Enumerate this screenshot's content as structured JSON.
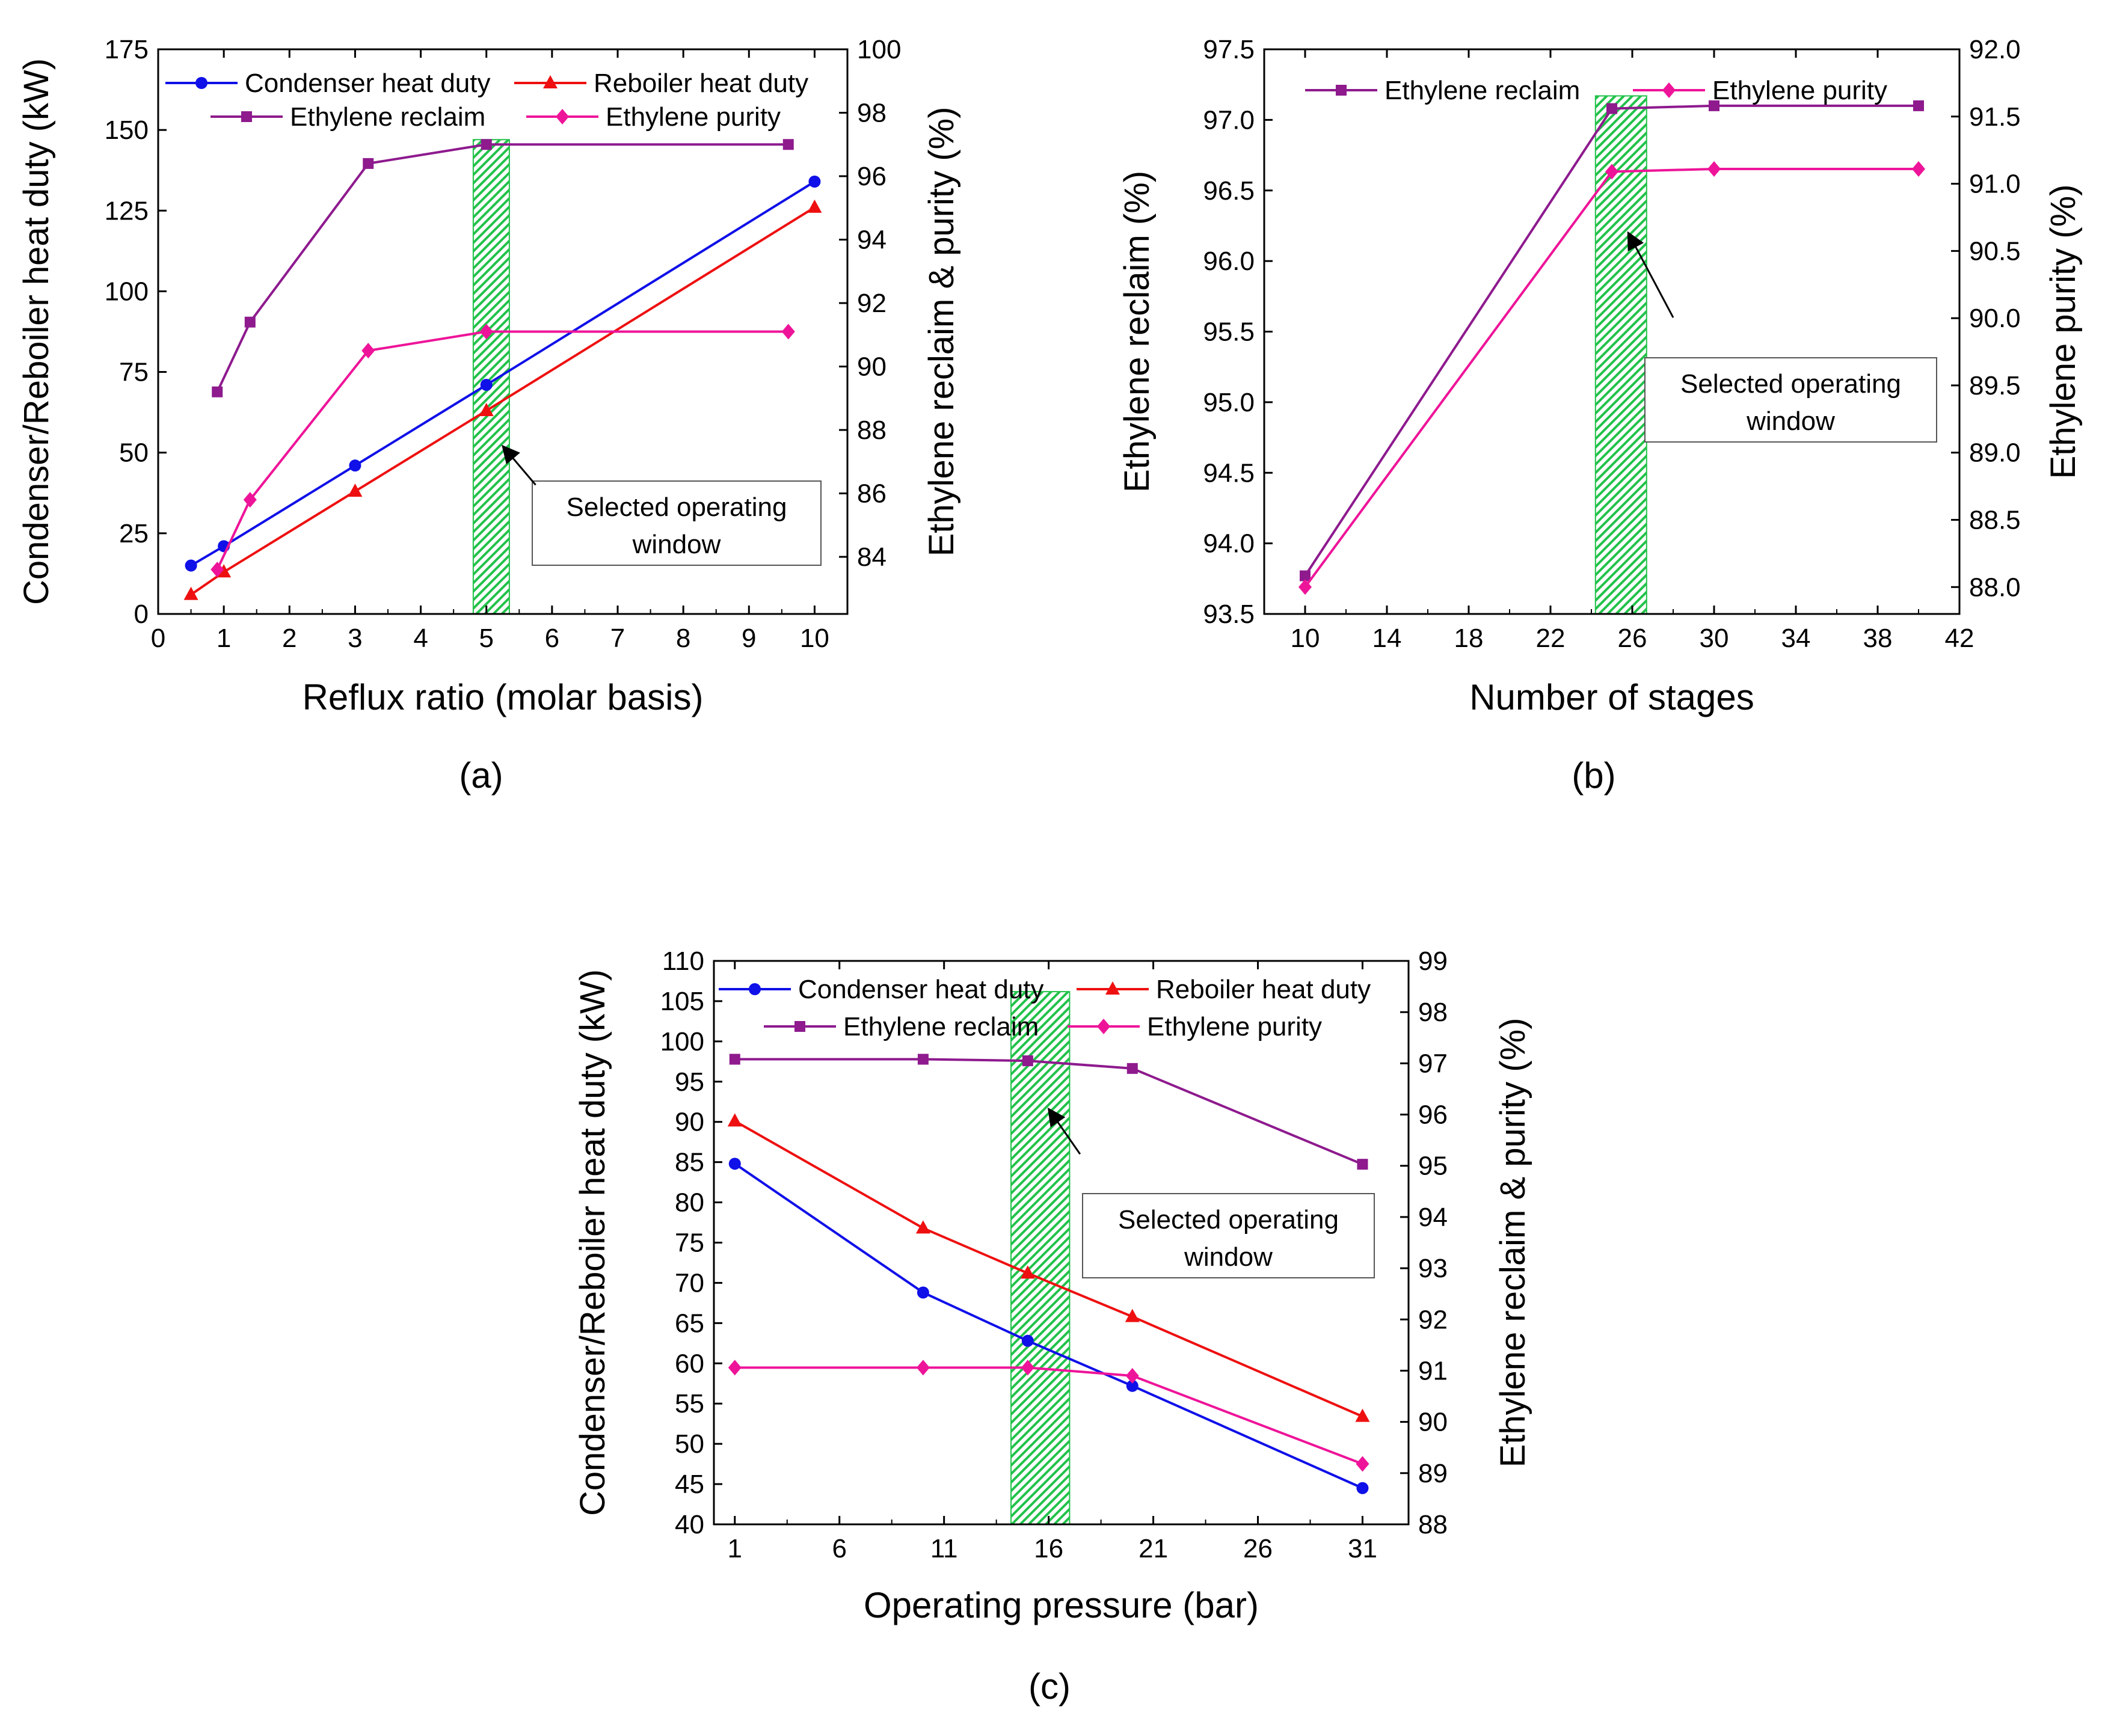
{
  "colors": {
    "condenser": "#1010e8",
    "reboiler": "#ee1010",
    "reclaim": "#8e1a8e",
    "purity": "#ee1499",
    "window": "#22c24a",
    "window_bg": "#ffffff"
  },
  "chart_data": [
    {
      "type": "line",
      "panel_label": "(a)",
      "xlabel": "Reflux ratio (molar basis)",
      "ylabel": "Condenser/Reboiler heat duty (kW)",
      "y2label": "Ethylene reclaim & purity (%)",
      "xlim": [
        0,
        10.5
      ],
      "ylim": [
        0,
        175
      ],
      "y2lim": [
        82.2,
        100
      ],
      "xticks": [
        0,
        1,
        2,
        3,
        4,
        5,
        6,
        7,
        8,
        9,
        10
      ],
      "yticks": [
        0,
        25,
        50,
        75,
        100,
        125,
        150,
        175
      ],
      "y2ticks": [
        84,
        86,
        88,
        90,
        92,
        94,
        96,
        98,
        100
      ],
      "x_tick_labels": [
        "0",
        "1",
        "2",
        "3",
        "4",
        "5",
        "6",
        "7",
        "8",
        "9",
        "10"
      ],
      "y_tick_labels": [
        "0",
        "25",
        "50",
        "75",
        "100",
        "125",
        "150",
        "175"
      ],
      "y2_tick_labels": [
        "84",
        "86",
        "88",
        "90",
        "92",
        "94",
        "96",
        "98",
        "100"
      ],
      "series": [
        {
          "name": "Condenser heat duty",
          "axis": "left",
          "marker": "circle",
          "color": "#1010e8",
          "x": [
            0.5,
            1,
            3,
            5,
            10
          ],
          "y": [
            15,
            21,
            46,
            71,
            134
          ]
        },
        {
          "name": "Reboiler heat duty",
          "axis": "left",
          "marker": "triangle",
          "color": "#ee1010",
          "x": [
            0.5,
            1,
            3,
            5,
            10
          ],
          "y": [
            6,
            13,
            38,
            63,
            126
          ]
        },
        {
          "name": "Ethylene reclaim",
          "axis": "right",
          "marker": "square",
          "color": "#8e1a8e",
          "x": [
            0.9,
            1.4,
            3.2,
            5.0,
            9.6
          ],
          "y": [
            89.2,
            91.4,
            96.4,
            97.0,
            97.0
          ]
        },
        {
          "name": "Ethylene purity",
          "axis": "right",
          "marker": "diamond",
          "color": "#ee1499",
          "x": [
            0.9,
            1.4,
            3.2,
            5.0,
            9.6
          ],
          "y": [
            83.6,
            85.8,
            90.5,
            91.1,
            91.1
          ]
        }
      ],
      "legend": {
        "position": "top",
        "entries": [
          "Condenser heat duty",
          "Reboiler heat duty",
          "Ethylene reclaim",
          "Ethylene purity"
        ]
      },
      "highlight": {
        "x_range": [
          4.8,
          5.35
        ],
        "y_top": 147
      },
      "annotation": {
        "line1": "Selected operating",
        "line2": "window",
        "arrow_from_x": 5.75,
        "arrow_from_y": 40,
        "arrow_to_x": 5.25,
        "arrow_to_y": 52
      }
    },
    {
      "type": "line",
      "panel_label": "(b)",
      "xlabel": "Number of stages",
      "ylabel": "Ethylene reclaim (%)",
      "y2label": "Ethylene purity (%)",
      "xlim": [
        8,
        42
      ],
      "ylim": [
        93.5,
        97.5
      ],
      "y2lim": [
        87.8,
        92.0
      ],
      "xticks": [
        10,
        14,
        18,
        22,
        26,
        30,
        34,
        38,
        42
      ],
      "yticks": [
        93.5,
        94.0,
        94.5,
        95.0,
        95.5,
        96.0,
        96.5,
        97.0,
        97.5
      ],
      "y2ticks": [
        88.0,
        88.5,
        89.0,
        89.5,
        90.0,
        90.5,
        91.0,
        91.5,
        92.0
      ],
      "x_tick_labels": [
        "10",
        "14",
        "18",
        "22",
        "26",
        "30",
        "34",
        "38",
        "42"
      ],
      "y_tick_labels": [
        "93.5",
        "94.0",
        "94.5",
        "95.0",
        "95.5",
        "96.0",
        "96.5",
        "97.0",
        "97.5"
      ],
      "y2_tick_labels": [
        "88.0",
        "88.5",
        "89.0",
        "89.5",
        "90.0",
        "90.5",
        "91.0",
        "91.5",
        "92.0"
      ],
      "series": [
        {
          "name": "Ethylene reclaim",
          "axis": "left",
          "marker": "square",
          "color": "#8e1a8e",
          "x": [
            10,
            25,
            30,
            40
          ],
          "y": [
            93.77,
            97.08,
            97.1,
            97.1
          ]
        },
        {
          "name": "Ethylene purity",
          "axis": "right",
          "marker": "diamond",
          "color": "#ee1499",
          "x": [
            10,
            25,
            30,
            40
          ],
          "y": [
            88.0,
            91.09,
            91.11,
            91.11
          ]
        }
      ],
      "legend": {
        "position": "top",
        "entries": [
          "Ethylene reclaim",
          "Ethylene purity"
        ]
      },
      "highlight": {
        "x_range": [
          24.2,
          26.7
        ],
        "y_top": 97.17
      },
      "annotation": {
        "line1": "Selected operating",
        "line2": "window",
        "arrow_from_x": 28,
        "arrow_from_y": 95.6,
        "arrow_to_x": 25.8,
        "arrow_to_y": 96.2
      }
    },
    {
      "type": "line",
      "panel_label": "(c)",
      "xlabel": "Operating pressure (bar)",
      "ylabel": "Condenser/Reboiler heat duty (kW)",
      "y2label": "Ethylene reclaim & purity (%)",
      "xlim": [
        0,
        33.2
      ],
      "ylim": [
        40,
        110
      ],
      "y2lim": [
        88,
        99
      ],
      "xticks": [
        1,
        6,
        11,
        16,
        21,
        26,
        31
      ],
      "yticks": [
        40,
        45,
        50,
        55,
        60,
        65,
        70,
        75,
        80,
        85,
        90,
        95,
        100,
        105,
        110
      ],
      "y2ticks": [
        88,
        89,
        90,
        91,
        92,
        93,
        94,
        95,
        96,
        97,
        98,
        99
      ],
      "x_tick_labels": [
        "1",
        "6",
        "11",
        "16",
        "21",
        "26",
        "31"
      ],
      "y_tick_labels": [
        "40",
        "45",
        "50",
        "55",
        "60",
        "65",
        "70",
        "75",
        "80",
        "85",
        "90",
        "95",
        "100",
        "105",
        "110"
      ],
      "y2_tick_labels": [
        "88",
        "89",
        "90",
        "91",
        "92",
        "93",
        "94",
        "95",
        "96",
        "97",
        "98",
        "99"
      ],
      "series": [
        {
          "name": "Condenser heat duty",
          "axis": "left",
          "marker": "circle",
          "color": "#1010e8",
          "x": [
            1,
            10,
            15,
            20,
            31
          ],
          "y": [
            84.8,
            68.8,
            62.8,
            57.2,
            44.5
          ]
        },
        {
          "name": "Reboiler heat duty",
          "axis": "left",
          "marker": "triangle",
          "color": "#ee1010",
          "x": [
            1,
            10,
            15,
            20,
            31
          ],
          "y": [
            90.1,
            76.8,
            71.2,
            65.8,
            53.4
          ]
        },
        {
          "name": "Ethylene reclaim",
          "axis": "right",
          "marker": "square",
          "color": "#8e1a8e",
          "x": [
            1,
            10,
            15,
            20,
            31
          ],
          "y": [
            97.08,
            97.08,
            97.05,
            96.9,
            95.03
          ]
        },
        {
          "name": "Ethylene purity",
          "axis": "right",
          "marker": "diamond",
          "color": "#ee1499",
          "x": [
            1,
            10,
            15,
            20,
            31
          ],
          "y": [
            91.06,
            91.06,
            91.06,
            90.9,
            89.18
          ]
        }
      ],
      "legend": {
        "position": "top",
        "entries": [
          "Condenser heat duty",
          "Reboiler heat duty",
          "Ethylene reclaim",
          "Ethylene purity"
        ]
      },
      "highlight": {
        "x_range": [
          14.2,
          17.0
        ],
        "y_top": 98.4
      },
      "annotation": {
        "line1": "Selected operating",
        "line2": "window",
        "arrow_from_x": 17.5,
        "arrow_from_y": 86,
        "arrow_to_x": 16.0,
        "arrow_to_y": 91.6
      }
    }
  ]
}
